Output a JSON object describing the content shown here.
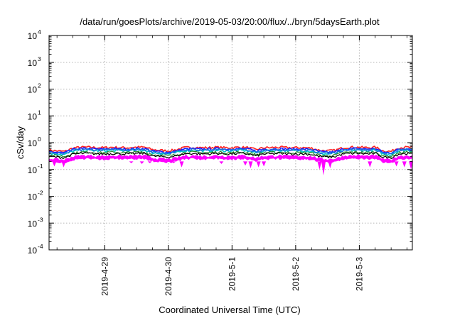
{
  "chart_data": {
    "type": "line",
    "title": "/data/run/goesPlots/archive/2019-05-03/20:00/flux/../bryn/5daysEarth.plot",
    "xlabel": "Coordinated Universal Time (UTC)",
    "ylabel": "cSv/day",
    "yscale": "log",
    "ylim": [
      0.0001,
      10000
    ],
    "xlim": [
      "2019-04-28T03:00",
      "2019-05-03T20:00"
    ],
    "grid": true,
    "legend": "none",
    "y_ticks": [
      {
        "base": "10",
        "exp": "-4"
      },
      {
        "base": "10",
        "exp": "-3"
      },
      {
        "base": "10",
        "exp": "-2"
      },
      {
        "base": "10",
        "exp": "-1"
      },
      {
        "base": "10",
        "exp": "0"
      },
      {
        "base": "10",
        "exp": "1"
      },
      {
        "base": "10",
        "exp": "2"
      },
      {
        "base": "10",
        "exp": "3"
      },
      {
        "base": "10",
        "exp": "4"
      }
    ],
    "x_ticks": [
      {
        "label": "2019-4-29",
        "at": "2019-04-29T00:00"
      },
      {
        "label": "2019-4-30",
        "at": "2019-04-30T00:00"
      },
      {
        "label": "2019-5-1",
        "at": "2019-05-01T00:00"
      },
      {
        "label": "2019-5-2",
        "at": "2019-05-02T00:00"
      },
      {
        "label": "2019-5-3",
        "at": "2019-05-03T00:00"
      }
    ],
    "day_profile": {
      "times": [
        "2019-04-28T03:00",
        "2019-04-28T06:00",
        "2019-04-28T09:00",
        "2019-04-28T12:00",
        "2019-04-28T15:00",
        "2019-04-28T18:00",
        "2019-04-28T21:00",
        "2019-04-29T00:00",
        "2019-04-29T03:00",
        "2019-04-29T06:00",
        "2019-04-29T09:00",
        "2019-04-29T12:00",
        "2019-04-29T15:00",
        "2019-04-29T18:00",
        "2019-04-29T21:00",
        "2019-04-30T00:00",
        "2019-04-30T03:00",
        "2019-04-30T06:00",
        "2019-04-30T09:00",
        "2019-04-30T12:00",
        "2019-04-30T15:00",
        "2019-04-30T18:00",
        "2019-04-30T21:00",
        "2019-05-01T00:00",
        "2019-05-01T03:00",
        "2019-05-01T06:00",
        "2019-05-01T09:00",
        "2019-05-01T12:00",
        "2019-05-01T15:00",
        "2019-05-01T18:00",
        "2019-05-01T21:00",
        "2019-05-02T00:00",
        "2019-05-02T03:00",
        "2019-05-02T06:00",
        "2019-05-02T09:00",
        "2019-05-02T12:00",
        "2019-05-02T15:00",
        "2019-05-02T18:00",
        "2019-05-02T21:00",
        "2019-05-03T00:00",
        "2019-05-03T03:00",
        "2019-05-03T06:00",
        "2019-05-03T09:00",
        "2019-05-03T12:00",
        "2019-05-03T15:00",
        "2019-05-03T18:00",
        "2019-05-03T20:00"
      ],
      "factors": [
        1.0,
        0.95,
        0.9,
        1.2,
        1.3,
        1.3,
        1.25,
        1.25,
        1.3,
        1.25,
        1.25,
        1.3,
        1.3,
        1.05,
        1.0,
        0.95,
        1.05,
        1.25,
        1.3,
        1.25,
        1.25,
        1.3,
        1.25,
        1.25,
        1.3,
        1.25,
        1.05,
        1.25,
        1.25,
        1.3,
        1.25,
        1.25,
        1.25,
        1.2,
        1.0,
        0.95,
        1.0,
        1.25,
        1.3,
        1.3,
        1.25,
        1.3,
        0.95,
        0.9,
        1.25,
        1.3,
        1.25
      ]
    },
    "series": [
      {
        "color": "#ff2020",
        "base": 0.52,
        "width": 1.6
      },
      {
        "color": "#1a1aff",
        "base": 0.46,
        "width": 1.6
      },
      {
        "color": "#00c8c8",
        "base": 0.4,
        "width": 1.6
      },
      {
        "color": "#2a8a2a",
        "base": 0.34,
        "width": 1.2
      },
      {
        "color": "#000000",
        "base": 0.305,
        "width": 1.2
      },
      {
        "color": "#ff00ff",
        "base": 0.24,
        "width": 2.2,
        "filled_to": 0.19
      },
      {
        "color": "#1a6adf",
        "base": 0.43,
        "width": 1.4
      }
    ],
    "dips": [
      {
        "at": "2019-04-28T05:00",
        "value": 0.13
      },
      {
        "at": "2019-04-28T08:30",
        "value": 0.12
      },
      {
        "at": "2019-04-29T10:00",
        "value": 0.17
      },
      {
        "at": "2019-04-29T14:00",
        "value": 0.16
      },
      {
        "at": "2019-04-29T17:00",
        "value": 0.17
      },
      {
        "at": "2019-04-30T02:00",
        "value": 0.17
      },
      {
        "at": "2019-04-30T05:00",
        "value": 0.12
      },
      {
        "at": "2019-04-30T20:00",
        "value": 0.16
      },
      {
        "at": "2019-05-01T05:00",
        "value": 0.14
      },
      {
        "at": "2019-05-01T07:00",
        "value": 0.11
      },
      {
        "at": "2019-05-01T10:00",
        "value": 0.12
      },
      {
        "at": "2019-05-01T12:00",
        "value": 0.13
      },
      {
        "at": "2019-05-02T09:00",
        "value": 0.1
      },
      {
        "at": "2019-05-02T10:30",
        "value": 0.06
      },
      {
        "at": "2019-05-02T13:00",
        "value": 0.11
      },
      {
        "at": "2019-05-03T04:00",
        "value": 0.12
      },
      {
        "at": "2019-05-03T14:00",
        "value": 0.13
      },
      {
        "at": "2019-05-03T17:00",
        "value": 0.12
      },
      {
        "at": "2019-05-03T19:30",
        "value": 0.1
      }
    ]
  }
}
